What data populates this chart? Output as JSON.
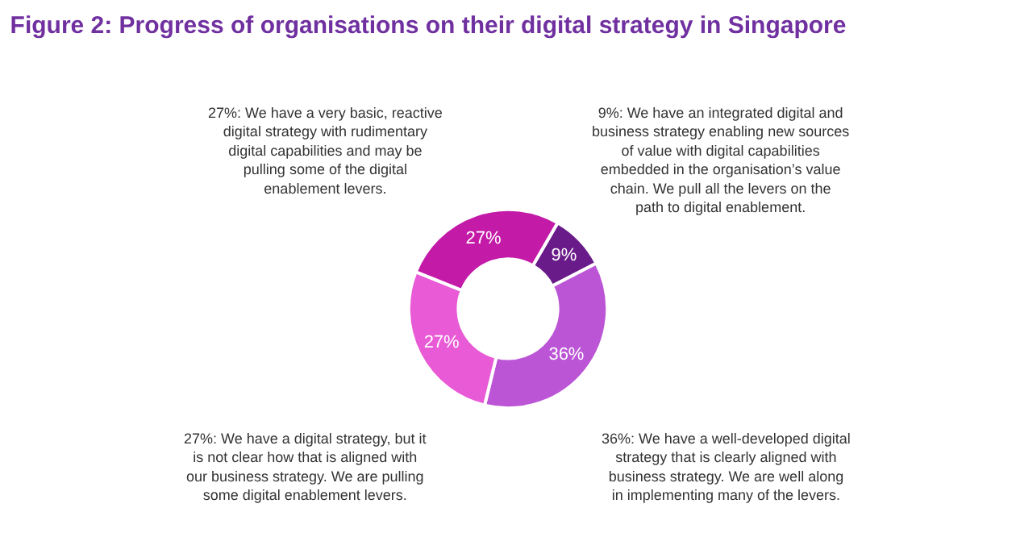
{
  "chart_data": {
    "type": "donut",
    "title": "Figure 2: Progress of organisations on their digital strategy in Singapore",
    "categories": [
      "9%: We have an integrated digital and business strategy enabling new sources of value with digital capabilities embedded in the organisation’s value chain. We pull all the levers on the path to digital enablement.",
      "36%: We have a well-developed digital strategy that is clearly aligned with business strategy. We are well along in implementing many of the levers.",
      "27%: We have a digital strategy, but it is not clear how that is aligned with our business strategy. We are pulling some digital enablement levers.",
      "27%: We have a very basic, reactive digital strategy with rudimentary digital capabilities and may be pulling some of the digital enablement levers."
    ],
    "values": [
      9,
      36,
      27,
      27
    ],
    "value_labels": [
      "9%",
      "36%",
      "27%",
      "27%"
    ],
    "colors": [
      "#6a1b8a",
      "#bb55d6",
      "#e85ad6",
      "#c41aa8"
    ],
    "legend": false
  }
}
